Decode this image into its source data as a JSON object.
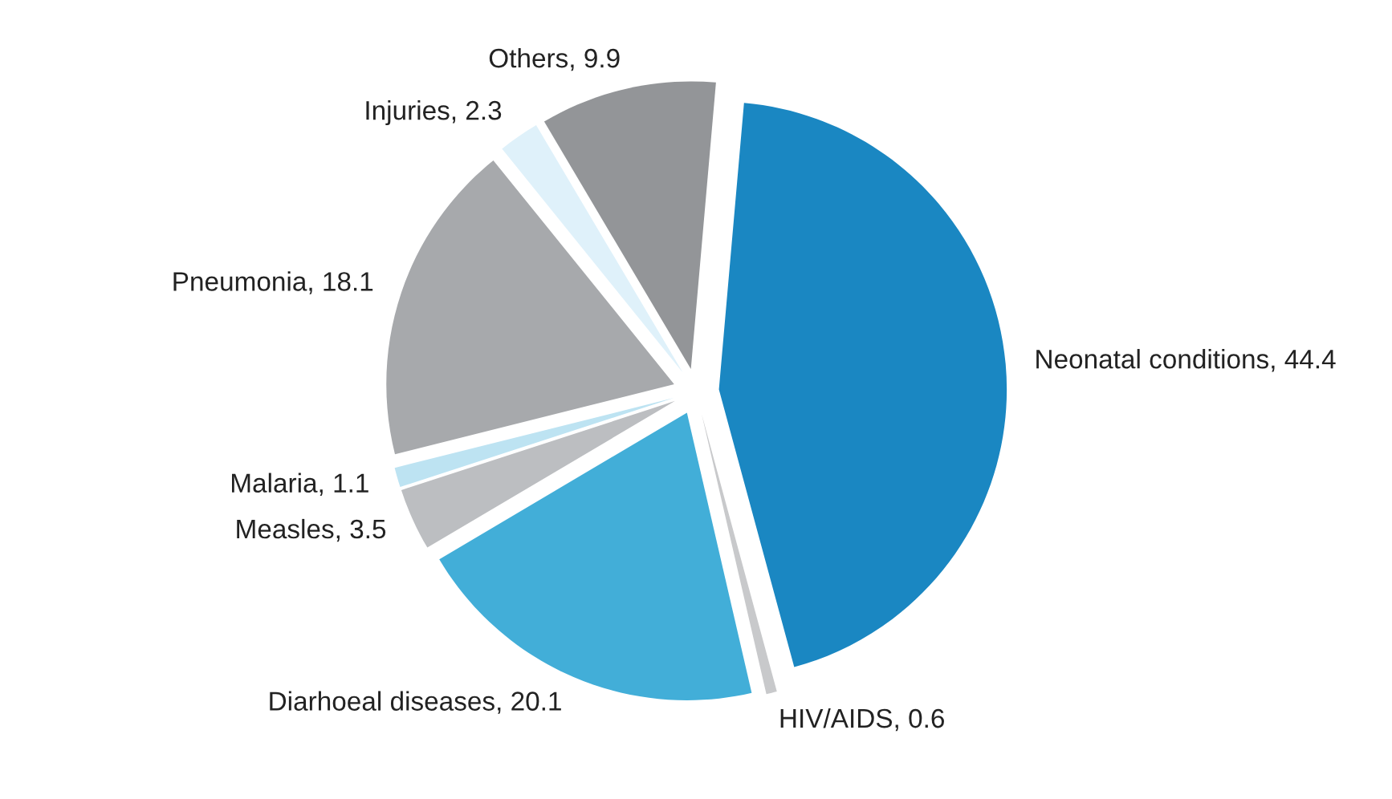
{
  "chart_data": {
    "type": "pie",
    "categories": [
      "Neonatal conditions, 44.4",
      "HIV/AIDS, 0.6",
      "Diarhoeal diseases, 20.1",
      "Measles, 3.5",
      "Malaria, 1.1",
      "Pneumonia, 18.1",
      "Injuries, 2.3",
      "Others, 9.9"
    ],
    "values": [
      44.4,
      0.6,
      20.1,
      3.5,
      1.1,
      18.1,
      2.3,
      9.9
    ],
    "colors": [
      "#1a87c2",
      "#c8c9cb",
      "#42aed8",
      "#bcbec1",
      "#bde3f2",
      "#a7a9ac",
      "#dff1fa",
      "#939598"
    ]
  }
}
